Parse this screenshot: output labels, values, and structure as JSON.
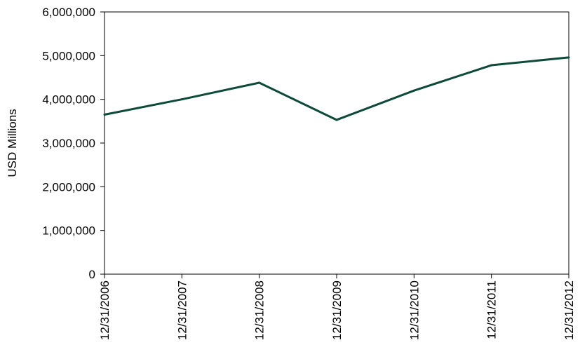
{
  "chart_data": {
    "type": "line",
    "title": "",
    "xlabel": "",
    "ylabel": "USD Millions",
    "ylim": [
      0,
      6000000
    ],
    "yticks": [
      "0",
      "1,000,000",
      "2,000,000",
      "3,000,000",
      "4,000,000",
      "5,000,000",
      "6,000,000"
    ],
    "categories": [
      "12/31/2006",
      "12/31/2007",
      "12/31/2008",
      "12/31/2009",
      "12/31/2010",
      "12/31/2011",
      "12/31/2012"
    ],
    "series": [
      {
        "values": [
          3650000,
          4000000,
          4380000,
          3530000,
          4200000,
          4780000,
          4960000
        ]
      }
    ],
    "grid": false,
    "legend": "none",
    "line_color": "#0d4a3a"
  }
}
